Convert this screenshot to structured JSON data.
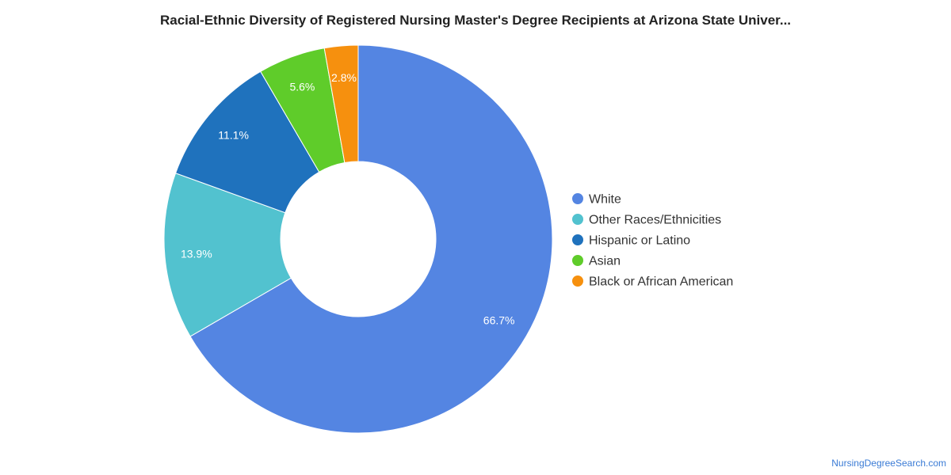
{
  "chart_data": {
    "type": "pie",
    "variant": "donut",
    "title": "Racial-Ethnic Diversity of Registered Nursing Master's Degree Recipients at Arizona State Univer...",
    "categories": [
      "White",
      "Other Races/Ethnicities",
      "Hispanic or Latino",
      "Asian",
      "Black or African American"
    ],
    "values": [
      66.7,
      13.9,
      11.1,
      5.6,
      2.8
    ],
    "value_labels": [
      "66.7%",
      "13.9%",
      "11.1%",
      "5.6%",
      "2.8%"
    ],
    "colors": [
      "#5485e2",
      "#52c2cf",
      "#1f72bd",
      "#5fcc2a",
      "#f6900e"
    ],
    "start": "top",
    "direction": "clockwise",
    "legend_position": "right"
  },
  "watermark": "NursingDegreeSearch.com"
}
